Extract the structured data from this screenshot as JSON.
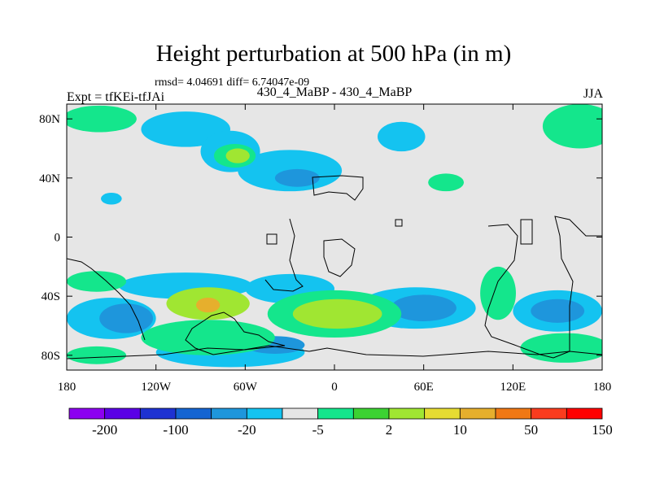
{
  "chart_data": {
    "type": "heatmap",
    "title": "Height perturbation at 500 hPa (in m)",
    "stats_line": "rmsd= 4.04691  diff= 6.74047e-09",
    "left_label": "Expt = tfKEi-tfJAi",
    "center_label": "430_4_MaBP - 430_4_MaBP",
    "right_label": "JJA",
    "x_axis": {
      "range": [
        -180,
        180
      ],
      "ticks": [
        -180,
        -120,
        -60,
        0,
        60,
        120,
        180
      ],
      "tick_labels": [
        "180",
        "120W",
        "60W",
        "0",
        "60E",
        "120E",
        "180"
      ]
    },
    "y_axis": {
      "range": [
        -90,
        90
      ],
      "ticks": [
        80,
        40,
        0,
        -40,
        -80
      ],
      "tick_labels": [
        "80N",
        "40N",
        "0",
        "40S",
        "80S"
      ]
    },
    "colorbar": {
      "colors": [
        "#8c00f0",
        "#5a00e6",
        "#1e32d2",
        "#1464d2",
        "#1e96dc",
        "#14c3f0",
        "#e6e6e6",
        "#14e68c",
        "#3cd232",
        "#a0e632",
        "#e6dc32",
        "#e6af2d",
        "#f07814",
        "#fa3c1e",
        "#ff0000"
      ],
      "tick_labels": [
        "-200",
        "-100",
        "-20",
        "-5",
        "2",
        "10",
        "50",
        "150"
      ]
    },
    "fields": [
      {
        "value": -5,
        "regions": [
          {
            "lon": -150,
            "lat": 78,
            "rx": 15,
            "ry": 6
          },
          {
            "lon": -100,
            "lat": 73,
            "rx": 30,
            "ry": 12
          },
          {
            "lon": -70,
            "lat": 58,
            "rx": 20,
            "ry": 14
          },
          {
            "lon": -30,
            "lat": 45,
            "rx": 35,
            "ry": 14
          },
          {
            "lon": 45,
            "lat": 68,
            "rx": 16,
            "ry": 10
          },
          {
            "lon": -150,
            "lat": 26,
            "rx": 7,
            "ry": 4
          },
          {
            "lon": -100,
            "lat": -33,
            "rx": 45,
            "ry": 9
          },
          {
            "lon": -30,
            "lat": -35,
            "rx": 30,
            "ry": 10
          },
          {
            "lon": -150,
            "lat": -55,
            "rx": 30,
            "ry": 14
          },
          {
            "lon": 55,
            "lat": -48,
            "rx": 40,
            "ry": 14
          },
          {
            "lon": 150,
            "lat": -50,
            "rx": 30,
            "ry": 14
          },
          {
            "lon": -70,
            "lat": -78,
            "rx": 50,
            "ry": 10
          }
        ]
      },
      {
        "value": -20,
        "regions": [
          {
            "lon": -25,
            "lat": 40,
            "rx": 15,
            "ry": 6
          },
          {
            "lon": -140,
            "lat": -55,
            "rx": 18,
            "ry": 10
          },
          {
            "lon": 60,
            "lat": -48,
            "rx": 22,
            "ry": 9
          },
          {
            "lon": 150,
            "lat": -50,
            "rx": 18,
            "ry": 8
          },
          {
            "lon": -40,
            "lat": -73,
            "rx": 20,
            "ry": 6
          }
        ]
      },
      {
        "value": 2,
        "regions": [
          {
            "lon": -158,
            "lat": 80,
            "rx": 25,
            "ry": 9
          },
          {
            "lon": -67,
            "lat": 55,
            "rx": 14,
            "ry": 8
          },
          {
            "lon": 165,
            "lat": 75,
            "rx": 25,
            "ry": 15
          },
          {
            "lon": 75,
            "lat": 37,
            "rx": 12,
            "ry": 6
          },
          {
            "lon": -85,
            "lat": -68,
            "rx": 45,
            "ry": 12
          },
          {
            "lon": 0,
            "lat": -52,
            "rx": 45,
            "ry": 16
          },
          {
            "lon": 155,
            "lat": -75,
            "rx": 30,
            "ry": 10
          },
          {
            "lon": -160,
            "lat": -80,
            "rx": 20,
            "ry": 6
          },
          {
            "lon": 110,
            "lat": -38,
            "rx": 12,
            "ry": 18
          },
          {
            "lon": -160,
            "lat": -30,
            "rx": 20,
            "ry": 7
          }
        ]
      },
      {
        "value": 10,
        "regions": [
          {
            "lon": -65,
            "lat": 55,
            "rx": 8,
            "ry": 5
          },
          {
            "lon": -85,
            "lat": -45,
            "rx": 28,
            "ry": 11
          },
          {
            "lon": 2,
            "lat": -52,
            "rx": 30,
            "ry": 10
          }
        ]
      },
      {
        "value": 50,
        "regions": [
          {
            "lon": -85,
            "lat": -46,
            "rx": 8,
            "ry": 5
          }
        ]
      }
    ]
  }
}
